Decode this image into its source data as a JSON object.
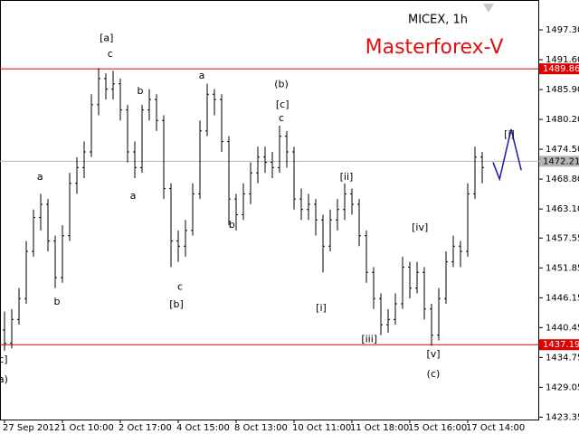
{
  "chart_data": {
    "type": "ohlc",
    "title": "MICEX, 1h",
    "watermark": "Masterforex-V",
    "watermark_color": "#e01010",
    "categories": [
      "27 Sep 2012",
      null,
      null,
      null,
      null,
      null,
      null,
      null,
      "1 Oct 10:00",
      null,
      null,
      null,
      null,
      null,
      null,
      null,
      "2 Oct 17:00",
      null,
      null,
      null,
      null,
      null,
      null,
      null,
      "4 Oct 15:00",
      null,
      null,
      null,
      null,
      null,
      null,
      null,
      "8 Oct 13:00",
      null,
      null,
      null,
      null,
      null,
      null,
      null,
      "10 Oct 11:00",
      null,
      null,
      null,
      null,
      null,
      null,
      null,
      "11 Oct 18:00",
      null,
      null,
      null,
      null,
      null,
      null,
      null,
      "15 Oct 16:00",
      null,
      null,
      null,
      null,
      null,
      null,
      null,
      "17 Oct 14:00",
      null,
      null
    ],
    "series": [
      {
        "color": "#000000",
        "values": [
          [
            1440,
            1443.5,
            1436,
            1437.5
          ],
          [
            1437.5,
            1444,
            1436.5,
            1442
          ],
          [
            1442,
            1448,
            1441,
            1446
          ],
          [
            1446,
            1457,
            1445,
            1455
          ],
          [
            1455,
            1463,
            1454,
            1461.5
          ],
          [
            1461.5,
            1466,
            1459,
            1464
          ],
          [
            1464,
            1465,
            1455,
            1457
          ],
          [
            1457,
            1458,
            1448,
            1450
          ],
          [
            1450,
            1460,
            1449,
            1458
          ],
          [
            1458,
            1470,
            1457,
            1468
          ],
          [
            1468,
            1473,
            1466,
            1471
          ],
          [
            1471,
            1476,
            1469,
            1474
          ],
          [
            1474,
            1485,
            1473,
            1483
          ],
          [
            1483,
            1490,
            1481,
            1488
          ],
          [
            1488,
            1489,
            1484,
            1486
          ],
          [
            1486,
            1489.5,
            1484,
            1487
          ],
          [
            1487,
            1488,
            1480,
            1482
          ],
          [
            1482,
            1483,
            1472,
            1474
          ],
          [
            1474,
            1476,
            1469,
            1471
          ],
          [
            1471,
            1483,
            1470,
            1482
          ],
          [
            1482,
            1486,
            1480,
            1484
          ],
          [
            1484,
            1485,
            1478,
            1480
          ],
          [
            1480,
            1481,
            1465,
            1467
          ],
          [
            1467,
            1468,
            1452,
            1457
          ],
          [
            1457,
            1459,
            1453,
            1456
          ],
          [
            1456,
            1461,
            1454,
            1459
          ],
          [
            1459,
            1468,
            1458,
            1466
          ],
          [
            1466,
            1480,
            1465,
            1478
          ],
          [
            1478,
            1487,
            1477,
            1485
          ],
          [
            1485,
            1486,
            1481,
            1484
          ],
          [
            1484,
            1485,
            1474,
            1476
          ],
          [
            1476,
            1477,
            1460,
            1465
          ],
          [
            1465,
            1466,
            1459,
            1462
          ],
          [
            1462,
            1468,
            1461,
            1466
          ],
          [
            1466,
            1472,
            1464,
            1470
          ],
          [
            1470,
            1475,
            1468,
            1473
          ],
          [
            1473,
            1475,
            1470,
            1472
          ],
          [
            1472,
            1474,
            1469,
            1471
          ],
          [
            1471,
            1479,
            1470,
            1477
          ],
          [
            1477,
            1478,
            1471,
            1474
          ],
          [
            1474,
            1475,
            1463,
            1465
          ],
          [
            1465,
            1467,
            1461,
            1463
          ],
          [
            1463,
            1466,
            1461,
            1464
          ],
          [
            1464,
            1465,
            1458,
            1461
          ],
          [
            1461,
            1462,
            1451,
            1456
          ],
          [
            1456,
            1463,
            1455,
            1461
          ],
          [
            1461,
            1465,
            1459,
            1463
          ],
          [
            1463,
            1468,
            1461,
            1466
          ],
          [
            1466,
            1467,
            1462,
            1464
          ],
          [
            1464,
            1465,
            1456,
            1458
          ],
          [
            1458,
            1459,
            1449,
            1451
          ],
          [
            1451,
            1452,
            1444,
            1446
          ],
          [
            1446,
            1447,
            1439,
            1441
          ],
          [
            1441,
            1444,
            1439.5,
            1442
          ],
          [
            1442,
            1447,
            1441,
            1445
          ],
          [
            1445,
            1454,
            1444,
            1452
          ],
          [
            1452,
            1453,
            1446,
            1448
          ],
          [
            1448,
            1453,
            1447,
            1451
          ],
          [
            1451,
            1452,
            1442,
            1444
          ],
          [
            1444,
            1445,
            1437,
            1439
          ],
          [
            1439,
            1448,
            1438,
            1446
          ],
          [
            1446,
            1455,
            1445,
            1453
          ],
          [
            1453,
            1458,
            1452,
            1456
          ],
          [
            1456,
            1457,
            1452,
            1455
          ],
          [
            1455,
            1468,
            1454,
            1466
          ],
          [
            1466,
            1475,
            1465,
            1473
          ],
          [
            1473,
            1474,
            1468,
            1471
          ]
        ]
      }
    ],
    "ylim": [
      1422.9,
      1503.0
    ],
    "yticks": [
      {
        "value": 1497.3,
        "label": "1497.30"
      },
      {
        "value": 1491.6,
        "label": "1491.60"
      },
      {
        "value": 1485.9,
        "label": "1485.90"
      },
      {
        "value": 1480.2,
        "label": "1480.20"
      },
      {
        "value": 1474.5,
        "label": "1474.50"
      },
      {
        "value": 1468.8,
        "label": "1468.80"
      },
      {
        "value": 1463.1,
        "label": "1463.10"
      },
      1457.55,
      1451.85,
      1446.15,
      1440.45,
      1434.75,
      1429.05,
      1423.35
    ],
    "levels": [
      {
        "value": 1489.86,
        "color": "#e00000"
      },
      {
        "value": 1472.21,
        "color": "#b4b4b4"
      },
      {
        "value": 1437.19,
        "color": "#e00000"
      }
    ],
    "forecast": {
      "color": "#1a1aa8",
      "x": [
        67.5,
        68.4,
        70,
        71.4
      ],
      "y": [
        1472,
        1468.8,
        1478.3,
        1470.5
      ]
    },
    "annotations": [
      {
        "text": "[a]",
        "x": 14.1,
        "y": 1495.7
      },
      {
        "text": "c",
        "x": 14.6,
        "y": 1492.6
      },
      {
        "text": "a",
        "x": 4.9,
        "y": 1469.2
      },
      {
        "text": "b",
        "x": 7.25,
        "y": 1445.3
      },
      {
        "text": "a",
        "x": 17.75,
        "y": 1465.5
      },
      {
        "text": "b",
        "x": 18.75,
        "y": 1485.6
      },
      {
        "text": "a",
        "x": 27.25,
        "y": 1488.5
      },
      {
        "text": "c",
        "x": 24.25,
        "y": 1448.2
      },
      {
        "text": "[b]",
        "x": 23.75,
        "y": 1444.8
      },
      {
        "text": "b",
        "x": 31.4,
        "y": 1460
      },
      {
        "text": "(b)",
        "x": 38.25,
        "y": 1486.9
      },
      {
        "text": "[c]",
        "x": 38.4,
        "y": 1483
      },
      {
        "text": "c",
        "x": 38.25,
        "y": 1480.4
      },
      {
        "text": "[ii]",
        "x": 47.25,
        "y": 1469.2
      },
      {
        "text": "[i]",
        "x": 43.75,
        "y": 1444.1
      },
      {
        "text": "[iv]",
        "x": 57.4,
        "y": 1459.5
      },
      {
        "text": "[iii]",
        "x": 50.4,
        "y": 1438.2
      },
      {
        "text": "[v]",
        "x": 59.25,
        "y": 1435.3
      },
      {
        "text": "(c)",
        "x": 59.25,
        "y": 1431.5
      },
      {
        "text": "[i]",
        "x": 69.75,
        "y": 1477.3
      },
      {
        "text": "c]",
        "x": -0.2,
        "y": 1434.3
      },
      {
        "text": "a)",
        "x": -0.2,
        "y": 1430.5
      }
    ]
  }
}
